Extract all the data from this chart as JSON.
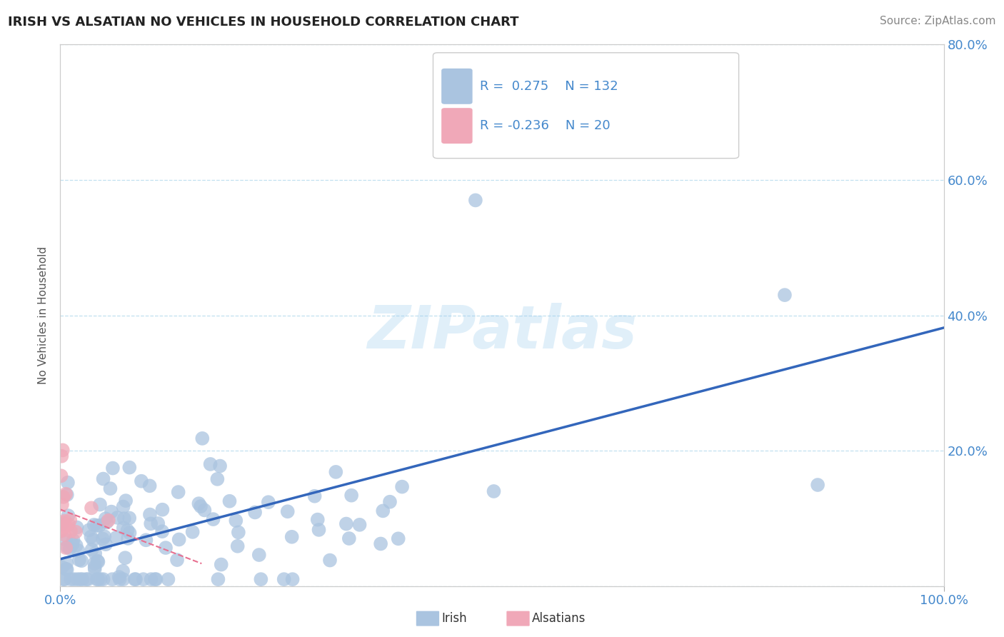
{
  "title": "IRISH VS ALSATIAN NO VEHICLES IN HOUSEHOLD CORRELATION CHART",
  "source": "Source: ZipAtlas.com",
  "ylabel": "No Vehicles in Household",
  "irish_R": 0.275,
  "irish_N": 132,
  "alsatian_R": -0.236,
  "alsatian_N": 20,
  "irish_color": "#aac4e0",
  "alsatian_color": "#f0a8b8",
  "irish_line_color": "#3366bb",
  "alsatian_line_color": "#e87090",
  "watermark": "ZIPatlas",
  "tick_color": "#4488cc",
  "background_color": "#ffffff",
  "xlim": [
    0.0,
    1.0
  ],
  "ylim": [
    0.0,
    0.8
  ],
  "yticks": [
    0.0,
    0.2,
    0.4,
    0.6,
    0.8
  ],
  "ytick_labels_right": [
    "",
    "20.0%",
    "40.0%",
    "60.0%",
    "80.0%"
  ]
}
